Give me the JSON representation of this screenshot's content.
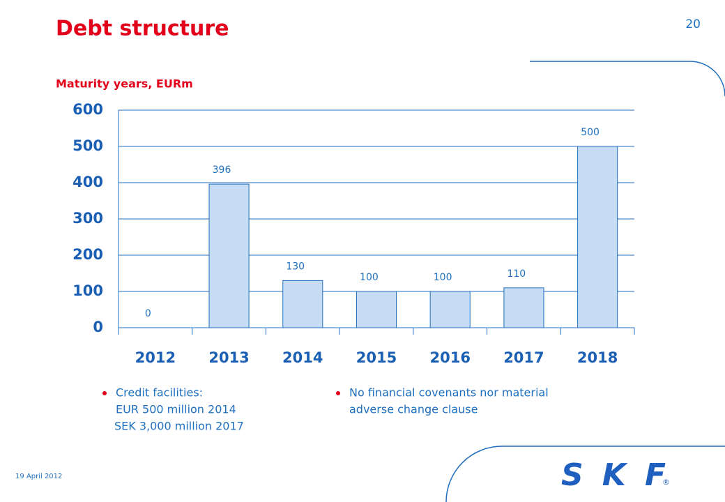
{
  "header": {
    "title": "Debt structure",
    "page_number": "20"
  },
  "chart_data": {
    "type": "bar",
    "title": "Maturity years, EURm",
    "categories": [
      "2012",
      "2013",
      "2014",
      "2015",
      "2016",
      "2017",
      "2018"
    ],
    "values": [
      0,
      396,
      130,
      100,
      100,
      110,
      500
    ],
    "color": "#c5dcf4",
    "edge_color": "#1f6fbf",
    "ylim": [
      0,
      600
    ],
    "yticks": [
      0,
      100,
      200,
      300,
      400,
      500,
      600
    ],
    "grid": true
  },
  "bullets": [
    {
      "lines": [
        "Credit facilities:",
        "EUR 500 million 2014",
        "SEK 3,000 million 2017"
      ]
    },
    {
      "lines": [
        "No financial covenants nor material",
        "adverse change clause"
      ]
    }
  ],
  "footer": {
    "date": "19 April 2012",
    "logo": "SKF",
    "mark": "®"
  }
}
